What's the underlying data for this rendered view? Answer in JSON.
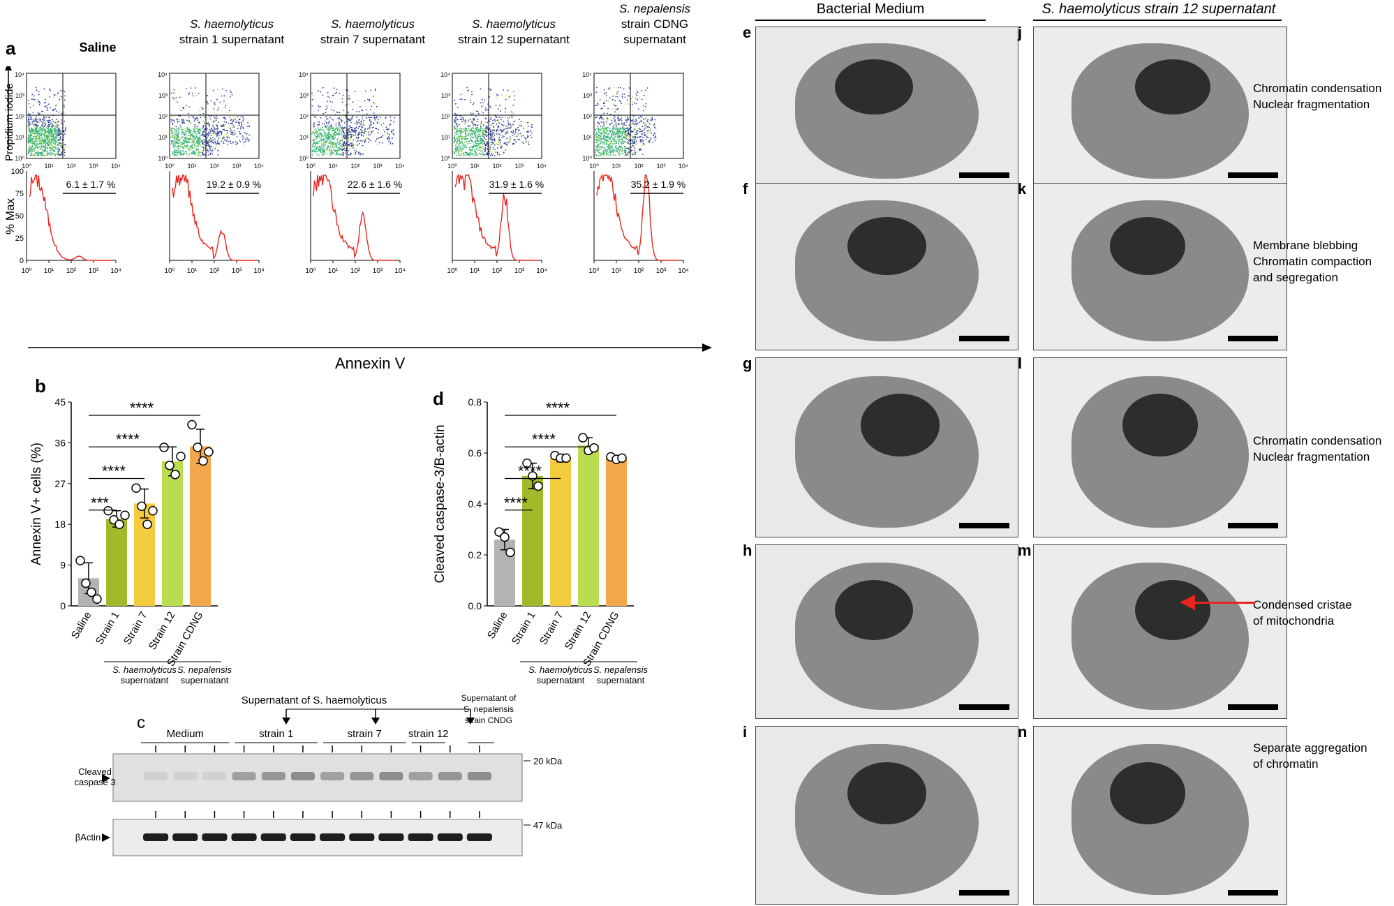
{
  "panel_a": {
    "label": "a",
    "titles": [
      {
        "line1": "Saline",
        "line2": "",
        "line3": ""
      },
      {
        "line1": "S. haemolyticus",
        "line2": "strain 1 supernatant",
        "line3": ""
      },
      {
        "line1": "S. haemolyticus",
        "line2": "strain 7 supernatant",
        "line3": ""
      },
      {
        "line1": "S. haemolyticus",
        "line2": "strain 12 supernatant",
        "line3": ""
      },
      {
        "line1": "S. nepalensis",
        "line2": "strain CDNG",
        "line3": "supernatant"
      }
    ],
    "dot_ylabel": "Propidium iodide",
    "hist_ylabel": "% Max",
    "xlabel": "Annexin V",
    "percentages": [
      "6.1 ± 1.7 %",
      "19.2 ± 0.9 %",
      "22.6 ± 1.6 %",
      "31.9 ± 1.6 %",
      "35.2 ± 1.9 %"
    ],
    "x_ticks": [
      "10⁰",
      "10¹",
      "10²",
      "10³",
      "10⁴"
    ],
    "y_ticks": [
      "10⁰",
      "10¹",
      "10²",
      "10³",
      "10⁴"
    ],
    "hist_y_ticks": [
      "0",
      "25",
      "50",
      "75",
      "100"
    ]
  },
  "chart_data": [
    {
      "type": "bar",
      "panel": "b",
      "categories": [
        "Saline",
        "Strain 1",
        "Strain 7",
        "Strain 12",
        "Strain CDNG"
      ],
      "values": [
        6.1,
        19.2,
        22.6,
        31.9,
        35.2
      ],
      "errors": [
        3.4,
        1.8,
        3.2,
        3.2,
        3.8
      ],
      "points": [
        [
          10,
          5,
          3,
          1.5
        ],
        [
          21,
          19,
          18,
          20
        ],
        [
          26,
          22,
          18,
          21
        ],
        [
          35,
          31,
          29,
          33
        ],
        [
          40,
          35,
          32,
          34
        ]
      ],
      "colors": [
        "#b3b3b3",
        "#a3b92c",
        "#f5cb3e",
        "#b9dd4f",
        "#f3a64c"
      ],
      "ylabel": "Annexin V+ cells (%)",
      "ylim": [
        0,
        45
      ],
      "yticks": [
        "0",
        "9",
        "18",
        "27",
        "36",
        "45"
      ],
      "significance": [
        "***",
        "****",
        "****",
        "****"
      ],
      "group_labels": [
        "S. haemolyticus",
        "supernatant",
        "S. nepalensis",
        "supernatant"
      ]
    },
    {
      "type": "bar",
      "panel": "d",
      "categories": [
        "Saline",
        "Strain 1",
        "Strain 7",
        "Strain 12",
        "Strain CDNG"
      ],
      "values": [
        0.26,
        0.51,
        0.58,
        0.63,
        0.58
      ],
      "errors": [
        0.04,
        0.05,
        0.015,
        0.03,
        0.01
      ],
      "points": [
        [
          0.29,
          0.27,
          0.21
        ],
        [
          0.56,
          0.51,
          0.47
        ],
        [
          0.59,
          0.58,
          0.58
        ],
        [
          0.66,
          0.61,
          0.62
        ],
        [
          0.585,
          0.575,
          0.58
        ]
      ],
      "colors": [
        "#b3b3b3",
        "#a3b92c",
        "#f5cb3e",
        "#b9dd4f",
        "#f3a64c"
      ],
      "ylabel": "Cleaved caspase-3/B-actin",
      "ylim": [
        0,
        0.8
      ],
      "yticks": [
        "0.0",
        "0.2",
        "0.4",
        "0.6",
        "0.8"
      ],
      "significance": [
        "****",
        "****",
        "****",
        "****"
      ],
      "group_labels": [
        "S. haemolyticus",
        "supernatant",
        "S. nepalensis",
        "supernatant"
      ]
    }
  ],
  "panel_c": {
    "label": "c",
    "header": "Supernatant of S. haemolyticus",
    "groups": [
      "Medium",
      "strain 1",
      "strain 7",
      "strain 12"
    ],
    "cndg_label": [
      "Supernatant of",
      "S. nepalensis",
      "strain CNDG"
    ],
    "row1_label": [
      "Cleaved",
      "caspase 3"
    ],
    "row2_label": "βActin",
    "marker1": "20 kDa",
    "marker2": "47 kDa"
  },
  "em_panels": {
    "col1_header": "Bacterial Medium",
    "col2_header": "S. haemolyticus strain 12 supernatant",
    "left_labels": [
      "e",
      "f",
      "g",
      "h",
      "i"
    ],
    "right_labels": [
      "j",
      "k",
      "l",
      "m",
      "n"
    ],
    "annotations": [
      [
        "Chromatin condensation",
        "Nuclear fragmentation"
      ],
      [
        "Membrane blebbing",
        "Chromatin compaction",
        "and segregation"
      ],
      [
        "Chromatin condensation",
        "Nuclear fragmentation"
      ],
      [
        "Condensed cristae",
        "of mitochondria"
      ],
      [
        "Separate aggregation",
        "of chromatin"
      ]
    ]
  }
}
